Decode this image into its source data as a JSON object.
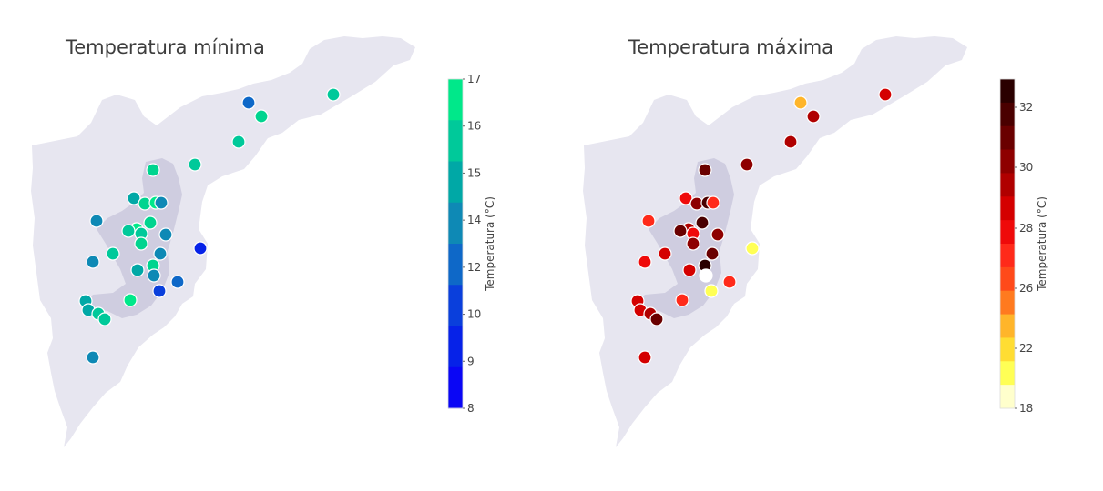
{
  "maps": [
    {
      "title": "Temperatura mínima",
      "colorbar": {
        "label": "Temperatura (°C)",
        "ticks": [
          "17",
          "16",
          "15",
          "14",
          "12",
          "10",
          "9",
          "8"
        ],
        "colors": [
          "#00e88a",
          "#00c99a",
          "#00a8a6",
          "#0e89b5",
          "#0e68c8",
          "#0a3fdc",
          "#0622e8",
          "#0a06f5"
        ]
      },
      "stations": [
        {
          "color": "#00c99a"
        },
        {
          "color": "#0e68c8"
        },
        {
          "color": "#00d48f"
        },
        {
          "color": "#00c99a"
        },
        {
          "color": "#00c99a"
        },
        {
          "color": "#00d48f"
        },
        {
          "color": "#00a8a6"
        },
        {
          "color": "#00d48f"
        },
        {
          "color": "#00e88a"
        },
        {
          "color": "#0e89b5"
        },
        {
          "color": "#0e89b5"
        },
        {
          "color": "#00d48f"
        },
        {
          "color": "#00e88a"
        },
        {
          "color": "#00c99a"
        },
        {
          "color": "#00c99a"
        },
        {
          "color": "#0e89b5"
        },
        {
          "color": "#00d48f"
        },
        {
          "color": "#0622e8"
        },
        {
          "color": "#00c99a"
        },
        {
          "color": "#0e89b5"
        },
        {
          "color": "#0e89b5"
        },
        {
          "color": "#00d48f"
        },
        {
          "color": "#00a8a6"
        },
        {
          "color": "#0e89b5"
        },
        {
          "color": "#0e68c8"
        },
        {
          "color": "#0a3fdc"
        },
        {
          "color": "#00a8a6"
        },
        {
          "color": "#00a8a6"
        },
        {
          "color": "#00c99a"
        },
        {
          "color": "#00c99a"
        },
        {
          "color": "#00e88a"
        },
        {
          "color": "#0e89b5"
        }
      ]
    },
    {
      "title": "Temperatura máxima",
      "colorbar": {
        "label": "Temperatura (°C)",
        "ticks": [
          "32",
          "30",
          "28",
          "26",
          "22",
          "18"
        ],
        "colors": [
          "#2a0000",
          "#4a0000",
          "#6a0000",
          "#8e0000",
          "#b00000",
          "#d40000",
          "#ef0a0a",
          "#ff2a1a",
          "#ff4a1a",
          "#ff7a1f",
          "#ffb52a",
          "#ffdd33",
          "#ffff55",
          "#ffffcc"
        ]
      },
      "stations": [
        {
          "color": "#d40000"
        },
        {
          "color": "#ffb52a"
        },
        {
          "color": "#b00000"
        },
        {
          "color": "#b00000"
        },
        {
          "color": "#8e0000"
        },
        {
          "color": "#6a0000"
        },
        {
          "color": "#ef0a0a"
        },
        {
          "color": "#8e0000"
        },
        {
          "color": "#4a0000"
        },
        {
          "color": "#ff2a1a"
        },
        {
          "color": "#ff2a1a"
        },
        {
          "color": "#4a0000"
        },
        {
          "color": "#b00000"
        },
        {
          "color": "#6a0000"
        },
        {
          "color": "#ef0a0a"
        },
        {
          "color": "#8e0000"
        },
        {
          "color": "#8e0000"
        },
        {
          "color": "#ffff55"
        },
        {
          "color": "#d40000"
        },
        {
          "color": "#6a0000"
        },
        {
          "color": "#ef0a0a"
        },
        {
          "color": "#2a0000"
        },
        {
          "color": "#d40000"
        },
        {
          "color": "#ffffff"
        },
        {
          "color": "#ff2a1a"
        },
        {
          "color": "#ffff55"
        },
        {
          "color": "#d40000"
        },
        {
          "color": "#d40000"
        },
        {
          "color": "#b00000"
        },
        {
          "color": "#6a0000"
        },
        {
          "color": "#ff2a1a"
        },
        {
          "color": "#d40000"
        }
      ]
    }
  ]
}
